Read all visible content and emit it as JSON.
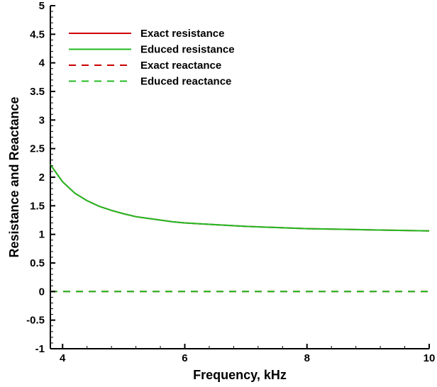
{
  "chart_data": {
    "type": "line",
    "title": "",
    "xlabel": "Frequency, kHz",
    "ylabel": "Resistance and Reactance",
    "xlim": [
      3.8,
      10
    ],
    "ylim": [
      -1,
      5
    ],
    "x_ticks": [
      4,
      6,
      8,
      10
    ],
    "y_ticks": [
      -1,
      -0.5,
      0,
      0.5,
      1,
      1.5,
      2,
      2.5,
      3,
      3.5,
      4,
      4.5,
      5
    ],
    "x_tick_labels": [
      "4",
      "6",
      "8",
      "10"
    ],
    "y_tick_labels": [
      "-1",
      "-0.5",
      "0",
      "0.5",
      "1",
      "1.5",
      "2",
      "2.5",
      "3",
      "3.5",
      "4",
      "4.5",
      "5"
    ],
    "grid": false,
    "legend_position": "top-left",
    "series": [
      {
        "name": "Exact resistance",
        "color": "#cc0000",
        "dash": "solid",
        "x": [
          3.8,
          4.0,
          4.2,
          4.4,
          4.6,
          4.8,
          5.0,
          5.2,
          5.4,
          5.6,
          5.8,
          6.0,
          6.5,
          7.0,
          7.5,
          8.0,
          8.5,
          9.0,
          9.5,
          10.0
        ],
        "y": [
          2.22,
          1.92,
          1.72,
          1.59,
          1.49,
          1.42,
          1.36,
          1.31,
          1.28,
          1.25,
          1.22,
          1.2,
          1.17,
          1.14,
          1.12,
          1.1,
          1.09,
          1.08,
          1.07,
          1.06
        ]
      },
      {
        "name": "Educed resistance",
        "color": "#22bb22",
        "dash": "solid",
        "x": [
          3.8,
          4.0,
          4.2,
          4.4,
          4.6,
          4.8,
          5.0,
          5.2,
          5.4,
          5.6,
          5.8,
          6.0,
          6.5,
          7.0,
          7.5,
          8.0,
          8.5,
          9.0,
          9.5,
          10.0
        ],
        "y": [
          2.22,
          1.92,
          1.72,
          1.59,
          1.49,
          1.42,
          1.36,
          1.31,
          1.28,
          1.25,
          1.22,
          1.2,
          1.17,
          1.14,
          1.12,
          1.1,
          1.09,
          1.08,
          1.07,
          1.06
        ]
      },
      {
        "name": "Exact reactance",
        "color": "#cc0000",
        "dash": "dashed",
        "x": [
          3.8,
          10.0
        ],
        "y": [
          0,
          0
        ]
      },
      {
        "name": "Educed reactance",
        "color": "#22bb22",
        "dash": "dashed",
        "x": [
          3.8,
          10.0
        ],
        "y": [
          0,
          0
        ]
      }
    ]
  }
}
